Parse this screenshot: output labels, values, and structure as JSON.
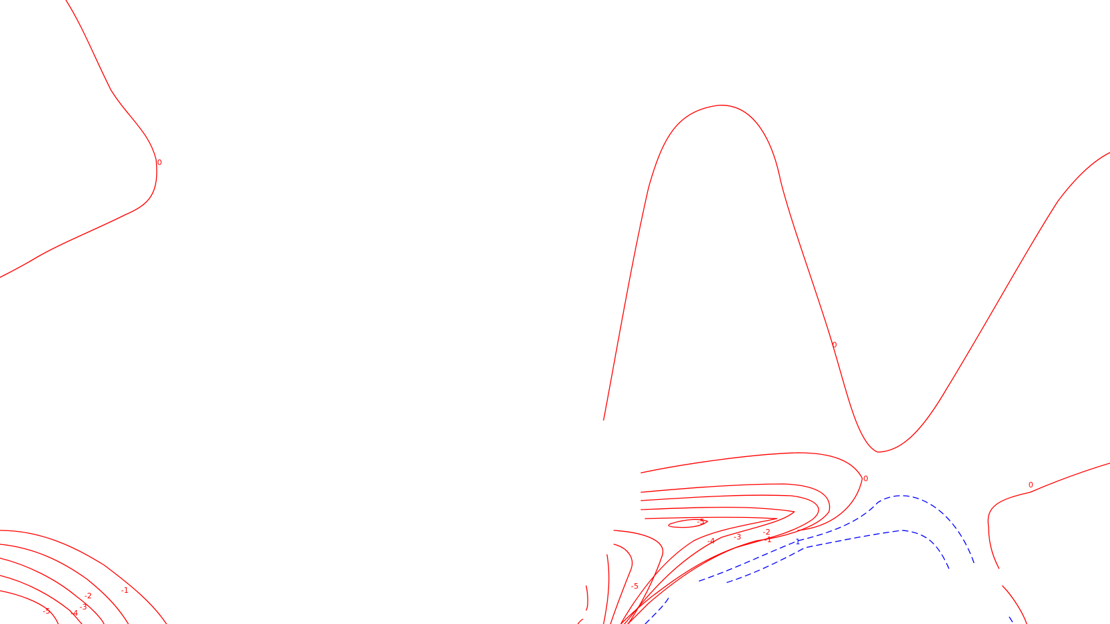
{
  "chart_data": {
    "type": "contour",
    "title": "",
    "xlabel": "",
    "ylabel": "",
    "colors": {
      "negative": "#ff0000",
      "positive": "#0000ff"
    },
    "levels": [
      -5,
      -4,
      -3,
      -2,
      -1,
      0,
      1
    ],
    "contour_labels": [
      {
        "id": "zero-upper-left",
        "text": "0",
        "sign": "negative"
      },
      {
        "id": "zero-center",
        "text": "0",
        "sign": "negative"
      },
      {
        "id": "zero-lower-center",
        "text": "0",
        "sign": "negative"
      },
      {
        "id": "zero-right",
        "text": "0",
        "sign": "negative"
      },
      {
        "id": "neg1-left",
        "text": "-1",
        "sign": "negative"
      },
      {
        "id": "neg2-left",
        "text": "-2",
        "sign": "negative"
      },
      {
        "id": "neg3-left",
        "text": "-3",
        "sign": "negative"
      },
      {
        "id": "neg4-left",
        "text": "-4",
        "sign": "negative"
      },
      {
        "id": "neg5-left",
        "text": "-5",
        "sign": "negative"
      },
      {
        "id": "neg5-basin",
        "text": "-5",
        "sign": "negative"
      },
      {
        "id": "neg4-basin",
        "text": "-4",
        "sign": "negative"
      },
      {
        "id": "neg3-basin",
        "text": "-3",
        "sign": "negative"
      },
      {
        "id": "neg2-basin",
        "text": "-2",
        "sign": "negative"
      },
      {
        "id": "neg1-basin",
        "text": "-1",
        "sign": "negative"
      },
      {
        "id": "neg5-lower",
        "text": "-5",
        "sign": "negative"
      },
      {
        "id": "pos1-basin",
        "text": "1",
        "sign": "positive"
      }
    ]
  }
}
